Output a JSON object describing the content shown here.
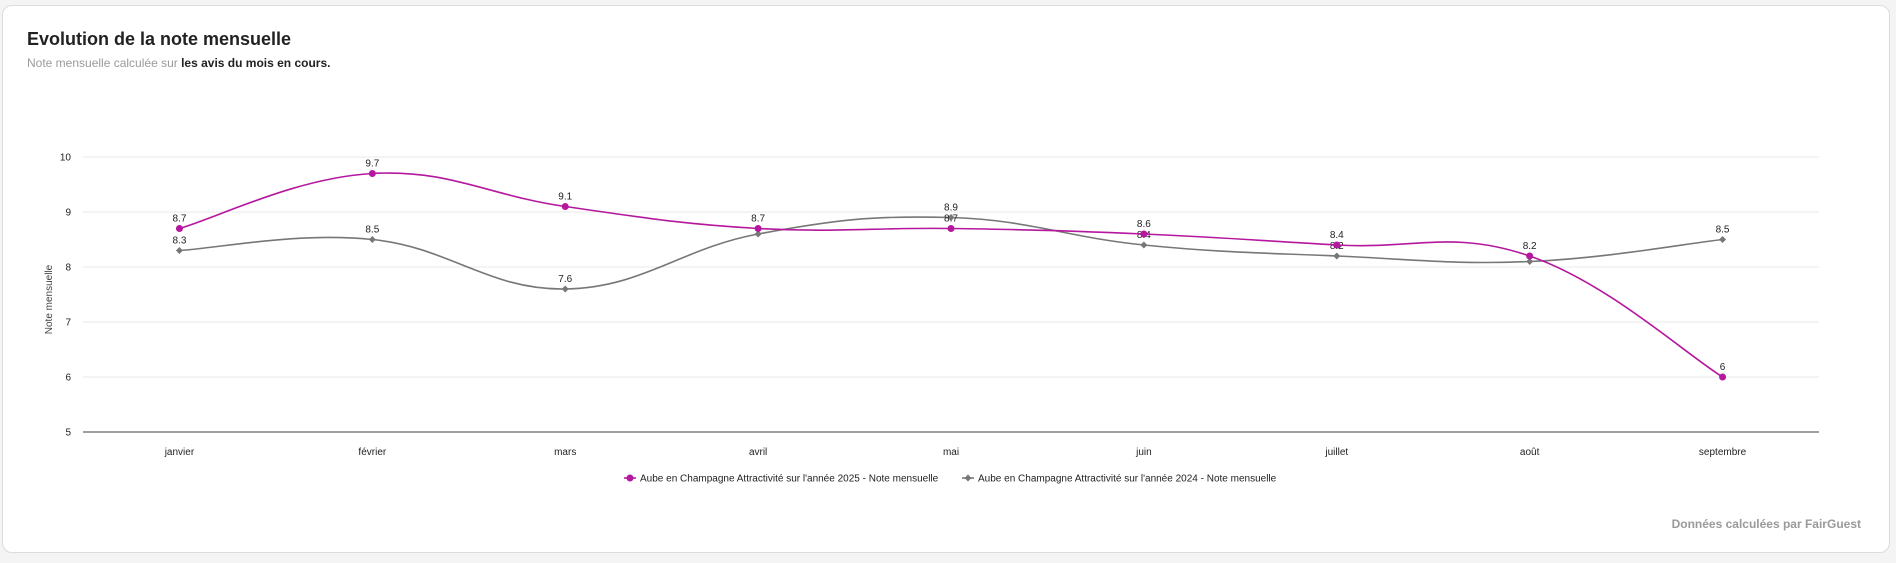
{
  "header": {
    "title": "Evolution de la note mensuelle",
    "subtitle_prefix": "Note mensuelle calculée sur",
    "subtitle_bold": "les avis du mois en cours."
  },
  "footer": {
    "text": "Données calculées par FairGuest"
  },
  "chart_data": {
    "type": "line",
    "ylabel": "Note mensuelle",
    "ylim": [
      5,
      10
    ],
    "yticks": [
      5,
      6,
      7,
      8,
      9,
      10
    ],
    "categories": [
      "janvier",
      "février",
      "mars",
      "avril",
      "mai",
      "juin",
      "juillet",
      "août",
      "septembre"
    ],
    "grid": true,
    "legend": "bottom",
    "series": [
      {
        "name": "Aube en Champagne Attractivité sur l'année 2025 - Note mensuelle",
        "color": "#b5179e",
        "marker": "circle",
        "values": [
          8.7,
          9.7,
          9.1,
          8.7,
          8.7,
          8.6,
          8.4,
          8.2,
          6
        ],
        "labels": [
          "8.7",
          "9.7",
          "9.1",
          "8.7",
          "8.7",
          "8.6",
          "8.4",
          "8.2",
          "6"
        ]
      },
      {
        "name": "Aube en Champagne Attractivité sur l'année 2024 - Note mensuelle",
        "color": "#777777",
        "marker": "diamond",
        "values": [
          8.3,
          8.5,
          7.6,
          8.6,
          8.9,
          8.4,
          8.2,
          8.1,
          8.5
        ],
        "labels": [
          "8.3",
          "8.5",
          "7.6",
          "",
          "8.9",
          "8.4",
          "8.2",
          "",
          "8.5"
        ]
      }
    ]
  }
}
